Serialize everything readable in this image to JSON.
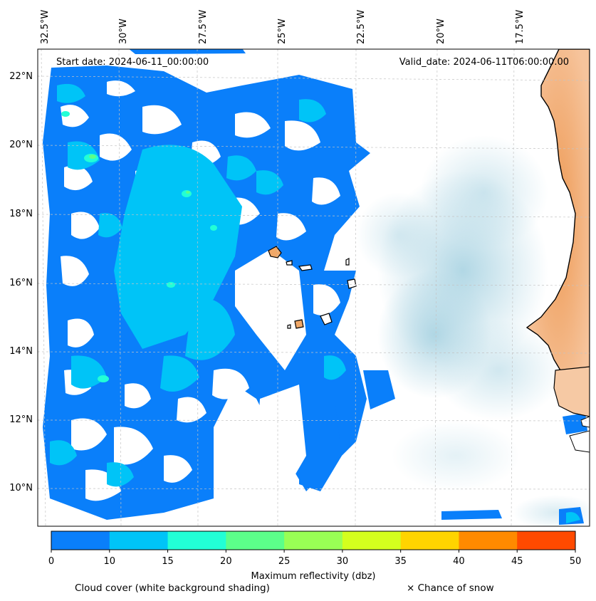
{
  "header": {
    "start_date": "Start date: 2024-06-11_00:00:00",
    "valid_date": "Valid_date: 2024-06-11T06:00:00.00"
  },
  "map": {
    "lon_labels": [
      "32.5°W",
      "30°W",
      "27.5°W",
      "25°W",
      "22.5°W",
      "20°W",
      "17.5°W"
    ],
    "lat_labels": [
      "22°N",
      "20°N",
      "18°N",
      "16°N",
      "14°N",
      "12°N",
      "10°N"
    ],
    "land_color": "#f0a868",
    "ocean_color": "#ffffff",
    "cloud_shading_color": "#bcdde8"
  },
  "colorbar": {
    "ticks": [
      "0",
      "10",
      "15",
      "20",
      "25",
      "30",
      "35",
      "40",
      "45",
      "50"
    ],
    "colors": [
      "#0a7ffa",
      "#00c4f7",
      "#22ffd6",
      "#5cff8a",
      "#99ff55",
      "#d4ff1e",
      "#ffd400",
      "#ff8a00",
      "#ff4a00"
    ],
    "label": "Maximum reflectivity (dbz)"
  },
  "footer": {
    "cloud_label": "Cloud cover (white background shading)",
    "snow_label": "× Chance of snow"
  }
}
